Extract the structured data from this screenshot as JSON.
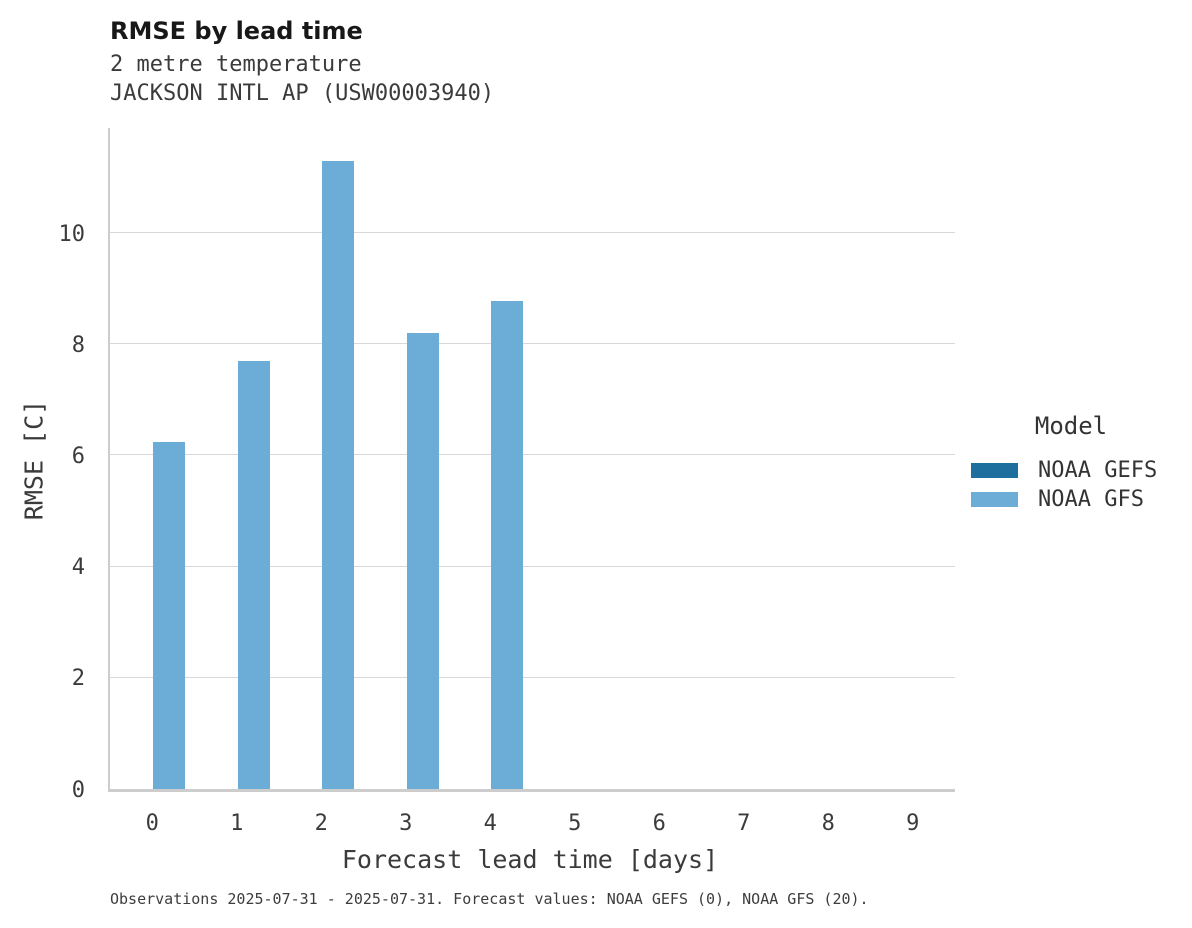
{
  "header": {
    "title": "RMSE by lead time",
    "subtitle1": "2 metre temperature",
    "subtitle2": "JACKSON INTL AP (USW00003940)"
  },
  "chart_data": {
    "type": "bar",
    "title": "RMSE by lead time",
    "subtitle": [
      "2 metre temperature",
      "JACKSON INTL AP (USW00003940)"
    ],
    "xlabel": "Forecast lead time [days]",
    "ylabel": "RMSE [C]",
    "categories": [
      "0",
      "1",
      "2",
      "3",
      "4",
      "5",
      "6",
      "7",
      "8",
      "9"
    ],
    "series": [
      {
        "name": "NOAA GEFS",
        "color": "#1f6f9e",
        "values": [
          null,
          null,
          null,
          null,
          null,
          null,
          null,
          null,
          null,
          null
        ]
      },
      {
        "name": "NOAA GFS",
        "color": "#6badd7",
        "values": [
          6.25,
          7.7,
          11.3,
          8.2,
          8.77,
          null,
          null,
          null,
          null,
          null
        ]
      }
    ],
    "y_ticks": [
      0,
      2,
      4,
      6,
      8,
      10
    ],
    "ylim": [
      0,
      11.89
    ],
    "grid": true,
    "legend_position": "right",
    "colors": {
      "gridline": "#d8d8d8",
      "axis_line": "#cdcdcd",
      "text": "#3b3b3b"
    }
  },
  "legend": {
    "title": "Model",
    "entries": [
      {
        "label": "NOAA GEFS",
        "color": "#1f6f9e"
      },
      {
        "label": "NOAA GFS",
        "color": "#6badd7"
      }
    ]
  },
  "caption": {
    "text": "Observations 2025-07-31 - 2025-07-31. Forecast values: NOAA GEFS (0), NOAA GFS (20)."
  }
}
